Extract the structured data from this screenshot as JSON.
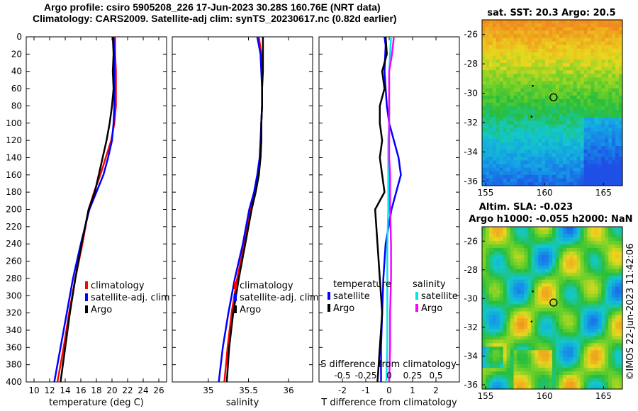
{
  "header": {
    "line1": "Argo profile: csiro 5905208_226 17-Jun-2023 30.28S 160.76E (NRT data)",
    "line2": "Climatology: CARS2009. Satellite-adj clim: synTS_20230617.nc (0.82d earlier)"
  },
  "map1": {
    "title": "sat. SST: 20.3 Argo: 20.5",
    "xticks": [
      "155",
      "160",
      "165"
    ],
    "yticks": [
      "-26",
      "-28",
      "-30",
      "-32",
      "-34",
      "-36"
    ]
  },
  "map2": {
    "title1": "Altim. SLA: -0.023",
    "title2": "Argo h1000: -0.055 h2000: NaN",
    "xticks": [
      "155",
      "160",
      "165"
    ],
    "yticks": [
      "-26",
      "-28",
      "-30",
      "-32",
      "-34",
      "-36"
    ]
  },
  "side_label": "©IMOS 22-Jun-2023 11:42:06",
  "colors": {
    "climatology": "#ff0000",
    "satellite": "#0000ff",
    "argo": "#000000",
    "cyan": "#00e5ee",
    "magenta": "#ff00ff"
  },
  "chart_data": [
    {
      "type": "line",
      "xlabel": "temperature (deg C)",
      "ylabel": "",
      "xlim": [
        9,
        27
      ],
      "ylim": [
        400,
        0
      ],
      "xticks": [
        "10",
        "12",
        "14",
        "16",
        "18",
        "20",
        "22",
        "24",
        "26"
      ],
      "yticks": [
        "0",
        "20",
        "40",
        "60",
        "80",
        "100",
        "120",
        "140",
        "160",
        "180",
        "200",
        "220",
        "240",
        "260",
        "280",
        "300",
        "320",
        "340",
        "360",
        "380",
        "400"
      ],
      "legend": [
        "climatology",
        "satellite-adj. clim",
        "Argo"
      ],
      "series": [
        {
          "name": "climatology",
          "x": [
            20.4,
            20.4,
            20.5,
            20.5,
            20.5,
            20.3,
            19.9,
            19.2,
            18.5,
            17.7,
            17.0,
            16.2,
            15.3,
            14.5,
            13.8,
            13.0
          ],
          "y": [
            0,
            20,
            40,
            60,
            80,
            100,
            120,
            140,
            160,
            180,
            200,
            240,
            280,
            320,
            360,
            400
          ]
        },
        {
          "name": "satellite-adj. clim",
          "x": [
            20.2,
            20.3,
            20.3,
            20.3,
            20.3,
            20.2,
            20.0,
            19.5,
            18.9,
            18.0,
            17.1,
            16.0,
            15.0,
            14.2,
            13.4,
            12.6
          ],
          "y": [
            0,
            20,
            40,
            60,
            80,
            100,
            120,
            140,
            160,
            180,
            200,
            240,
            280,
            320,
            360,
            400
          ]
        },
        {
          "name": "Argo",
          "x": [
            20.1,
            20.2,
            20.1,
            20.2,
            20.0,
            19.7,
            19.3,
            18.8,
            18.3,
            17.8,
            17.0,
            16.1,
            15.3,
            14.6,
            14.0,
            13.4
          ],
          "y": [
            0,
            20,
            40,
            60,
            80,
            100,
            120,
            140,
            160,
            180,
            200,
            240,
            280,
            320,
            360,
            400
          ]
        }
      ]
    },
    {
      "type": "line",
      "xlabel": "salinity",
      "ylabel": "",
      "xlim": [
        34.55,
        36.3
      ],
      "ylim": [
        400,
        0
      ],
      "xticks": [
        "35",
        "35.5",
        "36"
      ],
      "legend": [
        "climatology",
        "satellite-adj. clim",
        "Argo"
      ],
      "series": [
        {
          "name": "climatology",
          "x": [
            35.63,
            35.66,
            35.67,
            35.67,
            35.67,
            35.66,
            35.66,
            35.65,
            35.62,
            35.58,
            35.53,
            35.45,
            35.36,
            35.29,
            35.24,
            35.2
          ],
          "y": [
            0,
            20,
            40,
            60,
            80,
            100,
            120,
            140,
            160,
            180,
            200,
            240,
            280,
            320,
            360,
            400
          ]
        },
        {
          "name": "satellite-adj. clim",
          "x": [
            35.61,
            35.65,
            35.66,
            35.67,
            35.67,
            35.66,
            35.65,
            35.64,
            35.61,
            35.57,
            35.51,
            35.43,
            35.33,
            35.25,
            35.18,
            35.13
          ],
          "y": [
            0,
            20,
            40,
            60,
            80,
            100,
            120,
            140,
            160,
            180,
            200,
            240,
            280,
            320,
            360,
            400
          ]
        },
        {
          "name": "Argo",
          "x": [
            35.68,
            35.68,
            35.68,
            35.67,
            35.67,
            35.66,
            35.66,
            35.65,
            35.63,
            35.59,
            35.54,
            35.46,
            35.38,
            35.31,
            35.26,
            35.23
          ],
          "y": [
            0,
            20,
            40,
            60,
            80,
            100,
            120,
            140,
            160,
            180,
            200,
            240,
            280,
            320,
            360,
            400
          ]
        }
      ]
    },
    {
      "type": "line",
      "xlabel": "T difference from climatology",
      "ylabel": "",
      "xlim": [
        -3,
        3
      ],
      "ylim": [
        400,
        0
      ],
      "xticks": [
        "-2",
        "-1",
        "0",
        "1",
        "2"
      ],
      "secondary_axis": {
        "label": "S difference from climatology",
        "xlim": [
          -0.75,
          0.75
        ],
        "xticks": [
          "-0.5",
          "-0.25",
          "0",
          "0.25",
          "0.5"
        ]
      },
      "legend": {
        "temperature": [
          "satellite",
          "Argo"
        ],
        "salinity": [
          "satellite",
          "Argo"
        ],
        "headers": [
          "temperature",
          "salinity"
        ]
      },
      "series": [
        {
          "name": "temperature satellite",
          "x": [
            -0.2,
            -0.15,
            -0.2,
            -0.15,
            -0.1,
            0.0,
            0.2,
            0.4,
            0.5,
            0.3,
            0.1,
            -0.15,
            -0.25,
            -0.3,
            -0.35,
            -0.35
          ],
          "y": [
            0,
            10,
            40,
            60,
            80,
            100,
            120,
            140,
            160,
            180,
            200,
            240,
            280,
            320,
            360,
            400
          ]
        },
        {
          "name": "temperature Argo",
          "x": [
            -0.15,
            -0.1,
            -0.3,
            -0.2,
            -0.4,
            -0.4,
            -0.3,
            -0.4,
            -0.3,
            -0.2,
            -0.6,
            -0.5,
            -0.4,
            -0.3,
            -0.4,
            -0.5
          ],
          "y": [
            0,
            20,
            40,
            60,
            80,
            100,
            120,
            140,
            160,
            180,
            200,
            240,
            280,
            320,
            360,
            400
          ]
        },
        {
          "name": "salinity satellite",
          "x": [
            0.02,
            0.01,
            0.0,
            0.0,
            0.0,
            0.0,
            -0.01,
            -0.01,
            -0.01,
            -0.01,
            -0.01,
            -0.02,
            -0.02,
            -0.02,
            -0.02,
            -0.03
          ],
          "y": [
            0,
            20,
            40,
            60,
            80,
            100,
            120,
            140,
            160,
            180,
            200,
            240,
            280,
            320,
            360,
            400
          ]
        },
        {
          "name": "salinity Argo",
          "x": [
            0.05,
            0.03,
            0.0,
            0.0,
            0.0,
            0.0,
            0.0,
            0.0,
            0.01,
            0.01,
            0.01,
            0.02,
            0.02,
            0.01,
            0.01,
            0.0
          ],
          "y": [
            0,
            20,
            40,
            60,
            80,
            100,
            120,
            140,
            160,
            180,
            200,
            240,
            280,
            320,
            360,
            400
          ]
        }
      ]
    }
  ]
}
